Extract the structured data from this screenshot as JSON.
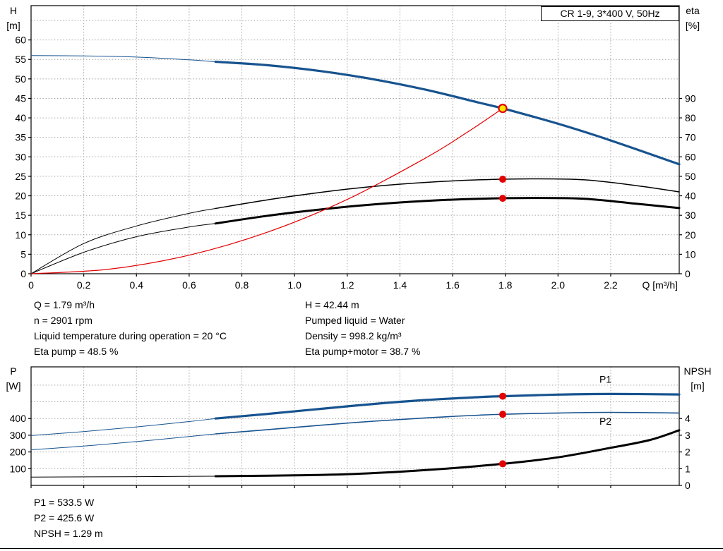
{
  "info_top": {
    "left": [
      "Q = 1.79 m³/h",
      "n = 2901 rpm",
      "Liquid temperature during operation = 20 °C",
      "Eta pump = 48.5 %"
    ],
    "right": [
      "H = 42.44 m",
      "Pumped liquid = Water",
      "Density = 998.2 kg/m³",
      "Eta pump+motor = 38.7 %"
    ]
  },
  "info_bottom": [
    "P1 = 533.5 W",
    "P2 = 425.6 W",
    "NPSH = 1.29 m"
  ],
  "colors": {
    "curve_blue": "#17538f",
    "curve_black": "#000000",
    "marker_red": "#e30000",
    "duty_yellow": "#ffe600",
    "grid_gray": "#a3a3a3"
  },
  "chart_data": [
    {
      "name": "hq-eta-chart",
      "type": "line",
      "title": "CR 1-9, 3*400 V, 50Hz",
      "xlabel": "Q [m³/h]",
      "xlim": [
        0,
        2.46
      ],
      "x_ticks": {
        "values": [
          0,
          0.2,
          0.4,
          0.6,
          0.8,
          1.0,
          1.2,
          1.4,
          1.6,
          1.8,
          2.0,
          2.2
        ],
        "labels": [
          "0",
          "0.2",
          "0.4",
          "0.6",
          "0.8",
          "1.0",
          "1.2",
          "1.4",
          "1.6",
          "1.8",
          "2.0",
          "2.2"
        ]
      },
      "left_axis": {
        "label_lines": [
          "H",
          "[m]"
        ],
        "lim": [
          0,
          68.8
        ],
        "ticks": [
          0,
          5,
          10,
          15,
          20,
          25,
          30,
          35,
          40,
          45,
          50,
          55,
          60
        ],
        "grid_extra": [
          65
        ]
      },
      "right_axis": {
        "label_lines": [
          "eta",
          "[%]"
        ],
        "lim": [
          0,
          137.6
        ],
        "ticks": [
          0,
          10,
          20,
          30,
          40,
          50,
          60,
          70,
          80,
          90
        ],
        "grid_extra": []
      },
      "series": [
        {
          "name": "head-curve-lowflow",
          "axis": "left",
          "color": "#17538f",
          "width": 1,
          "points": [
            [
              0,
              56
            ],
            [
              0.2,
              55.9
            ],
            [
              0.4,
              55.6
            ],
            [
              0.6,
              54.9
            ],
            [
              0.7,
              54.4
            ]
          ]
        },
        {
          "name": "head-curve",
          "axis": "left",
          "color": "#17538f",
          "width": 3.2,
          "points": [
            [
              0.7,
              54.4
            ],
            [
              0.9,
              53.5
            ],
            [
              1.1,
              52.0
            ],
            [
              1.3,
              49.9
            ],
            [
              1.5,
              47.2
            ],
            [
              1.7,
              43.9
            ],
            [
              1.79,
              42.44
            ],
            [
              2.0,
              38.5
            ],
            [
              2.2,
              34.2
            ],
            [
              2.46,
              28.1
            ]
          ]
        },
        {
          "name": "eta-pump-curve-lowflow",
          "axis": "right",
          "color": "#000000",
          "width": 1,
          "points": [
            [
              0,
              0
            ],
            [
              0.2,
              15.5
            ],
            [
              0.4,
              24.5
            ],
            [
              0.6,
              31
            ],
            [
              0.7,
              33.5
            ]
          ]
        },
        {
          "name": "eta-pump-curve",
          "axis": "right",
          "color": "#000000",
          "width": 1.5,
          "points": [
            [
              0.7,
              33.5
            ],
            [
              0.9,
              38
            ],
            [
              1.1,
              41.8
            ],
            [
              1.3,
              44.8
            ],
            [
              1.5,
              46.9
            ],
            [
              1.7,
              48.2
            ],
            [
              1.9,
              48.7
            ],
            [
              2.1,
              48.2
            ],
            [
              2.3,
              45.2
            ],
            [
              2.46,
              42
            ]
          ]
        },
        {
          "name": "eta-pump-motor-curve-lowflow",
          "axis": "right",
          "color": "#000000",
          "width": 1,
          "points": [
            [
              0,
              0
            ],
            [
              0.2,
              11
            ],
            [
              0.4,
              19
            ],
            [
              0.6,
              24
            ],
            [
              0.7,
              25.8
            ]
          ]
        },
        {
          "name": "eta-pump-motor-curve",
          "axis": "right",
          "color": "#000000",
          "width": 3,
          "points": [
            [
              0.7,
              25.8
            ],
            [
              0.9,
              29.8
            ],
            [
              1.1,
              33
            ],
            [
              1.3,
              35.6
            ],
            [
              1.5,
              37.4
            ],
            [
              1.7,
              38.5
            ],
            [
              1.9,
              38.9
            ],
            [
              2.1,
              38.5
            ],
            [
              2.3,
              35.9
            ],
            [
              2.46,
              33.7
            ]
          ]
        },
        {
          "name": "system-curve",
          "axis": "left",
          "color": "#e30000",
          "width": 1.2,
          "points": [
            [
              0,
              0
            ],
            [
              0.3,
              1.19
            ],
            [
              0.6,
              4.77
            ],
            [
              0.9,
              10.73
            ],
            [
              1.2,
              19.07
            ],
            [
              1.5,
              29.8
            ],
            [
              1.65,
              36.06
            ],
            [
              1.79,
              42.44
            ]
          ]
        }
      ],
      "markers": [
        {
          "name": "eta-pump-point",
          "axis": "right",
          "q": 1.79,
          "v": 48.5,
          "r": 5,
          "fill": "#e30000"
        },
        {
          "name": "eta-pump-motor-point",
          "axis": "right",
          "q": 1.79,
          "v": 38.7,
          "r": 5,
          "fill": "#e30000"
        },
        {
          "name": "duty-point",
          "axis": "left",
          "q": 1.79,
          "v": 42.44,
          "r": 5.5,
          "fill": "#ffe600",
          "stroke": "#e30000",
          "sw": 2.2,
          "interactable": true
        }
      ],
      "labels": []
    },
    {
      "name": "power-npsh-chart",
      "type": "line",
      "title": "",
      "xlabel": "",
      "xlim": [
        0,
        2.46
      ],
      "x_ticks": {
        "values": [
          0,
          0.2,
          0.4,
          0.6,
          0.8,
          1.0,
          1.2,
          1.4,
          1.6,
          1.8,
          2.0,
          2.2
        ],
        "labels": []
      },
      "left_axis": {
        "label_lines": [
          "P",
          "[W]"
        ],
        "lim": [
          0,
          709
        ],
        "ticks": [
          100,
          200,
          300,
          400
        ],
        "grid_extra": [
          500,
          600
        ]
      },
      "right_axis": {
        "label_lines": [
          "NPSH",
          "[m]"
        ],
        "lim": [
          0,
          7.09
        ],
        "ticks": [
          0,
          1,
          2,
          3,
          4
        ],
        "grid_extra": []
      },
      "series": [
        {
          "name": "p1-curve-lowflow",
          "axis": "left",
          "color": "#17538f",
          "width": 1,
          "points": [
            [
              0,
              298
            ],
            [
              0.2,
              322
            ],
            [
              0.4,
              350
            ],
            [
              0.6,
              382
            ],
            [
              0.7,
              400
            ]
          ]
        },
        {
          "name": "p1-curve",
          "axis": "left",
          "color": "#17538f",
          "width": 3.2,
          "points": [
            [
              0.7,
              400
            ],
            [
              0.9,
              428
            ],
            [
              1.1,
              458
            ],
            [
              1.3,
              487
            ],
            [
              1.5,
              511
            ],
            [
              1.7,
              528
            ],
            [
              1.79,
              533.5
            ],
            [
              2.0,
              543
            ],
            [
              2.2,
              547
            ],
            [
              2.46,
              544
            ]
          ]
        },
        {
          "name": "p2-curve-lowflow",
          "axis": "left",
          "color": "#17538f",
          "width": 1,
          "points": [
            [
              0,
              213
            ],
            [
              0.2,
              235
            ],
            [
              0.4,
              262
            ],
            [
              0.6,
              292
            ],
            [
              0.7,
              308
            ]
          ]
        },
        {
          "name": "p2-curve",
          "axis": "left",
          "color": "#17538f",
          "width": 1.6,
          "points": [
            [
              0.7,
              308
            ],
            [
              0.9,
              334
            ],
            [
              1.1,
              360
            ],
            [
              1.3,
              384
            ],
            [
              1.5,
              404
            ],
            [
              1.7,
              420
            ],
            [
              1.79,
              425.6
            ],
            [
              2.0,
              433
            ],
            [
              2.2,
              437
            ],
            [
              2.46,
              433
            ]
          ]
        },
        {
          "name": "npsh-curve-lowflow",
          "axis": "right",
          "color": "#000000",
          "width": 1,
          "points": [
            [
              0,
              0.5
            ],
            [
              0.35,
              0.52
            ],
            [
              0.7,
              0.55
            ]
          ]
        },
        {
          "name": "npsh-curve",
          "axis": "right",
          "color": "#000000",
          "width": 3,
          "points": [
            [
              0.7,
              0.55
            ],
            [
              1.0,
              0.6
            ],
            [
              1.2,
              0.67
            ],
            [
              1.4,
              0.82
            ],
            [
              1.6,
              1.03
            ],
            [
              1.79,
              1.29
            ],
            [
              2.0,
              1.68
            ],
            [
              2.2,
              2.25
            ],
            [
              2.35,
              2.72
            ],
            [
              2.46,
              3.3
            ]
          ]
        }
      ],
      "markers": [
        {
          "name": "p1-point",
          "axis": "left",
          "q": 1.79,
          "v": 533.5,
          "r": 5,
          "fill": "#e30000"
        },
        {
          "name": "p2-point",
          "axis": "left",
          "q": 1.79,
          "v": 425.6,
          "r": 5,
          "fill": "#e30000"
        },
        {
          "name": "npsh-point",
          "axis": "right",
          "q": 1.79,
          "v": 1.29,
          "r": 5,
          "fill": "#e30000"
        }
      ],
      "labels": [
        {
          "name": "p1-curve-label",
          "text": "P1",
          "axis": "left",
          "q": 2.18,
          "v": 615,
          "color": "#17538f"
        },
        {
          "name": "p2-curve-label",
          "text": "P2",
          "axis": "left",
          "q": 2.18,
          "v": 362,
          "color": "#17538f"
        }
      ]
    }
  ]
}
